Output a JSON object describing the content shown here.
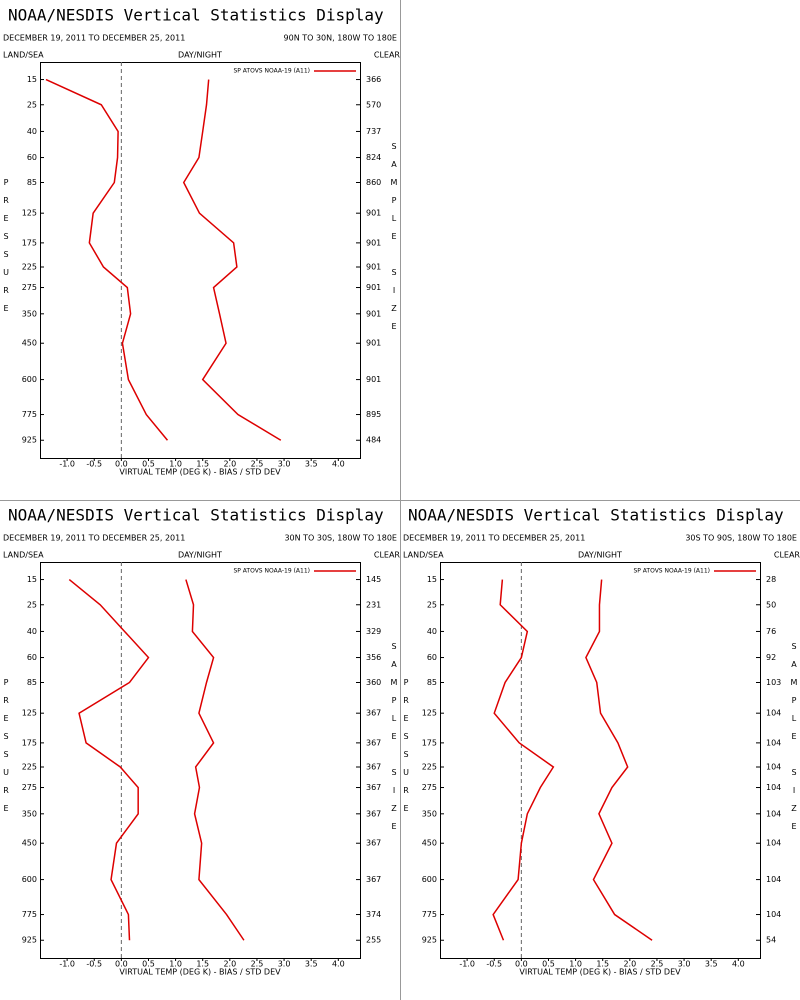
{
  "chart_data": [
    {
      "type": "line",
      "orientation": "horizontal",
      "title": "NOAA/NESDIS Vertical Statistics Display",
      "date_range": "DECEMBER 19, 2011 TO DECEMBER 25, 2011",
      "region": "90N TO 30N, 180W TO 180E",
      "land_sea": "LAND/SEA",
      "day_night": "DAY/NIGHT",
      "clear": "CLEAR",
      "y_label": "PRESSURE",
      "size_label": "SAMPLE SIZE",
      "x_label": "VIRTUAL TEMP (DEG K) - BIAS / STD DEV",
      "y": [
        15,
        25,
        40,
        60,
        85,
        125,
        175,
        225,
        275,
        350,
        450,
        600,
        775,
        925
      ],
      "series": [
        {
          "name": "SP ATOVS NOAA-19 (A11)",
          "color": "#dd0000",
          "values": [
            -1.39,
            -0.37,
            -0.06,
            -0.07,
            -0.13,
            -0.52,
            -0.59,
            -0.33,
            0.11,
            0.17,
            0.02,
            0.13,
            0.46,
            0.85
          ]
        },
        {
          "color": "#dd0000",
          "values": [
            1.61,
            1.57,
            1.5,
            1.43,
            1.15,
            1.44,
            2.07,
            2.13,
            1.7,
            1.81,
            1.93,
            1.5,
            2.15,
            2.94
          ]
        }
      ],
      "sample_size": [
        366,
        570,
        737,
        824,
        860,
        901,
        901,
        901,
        901,
        901,
        901,
        901,
        895,
        484
      ],
      "xlim": [
        -1.5,
        4.4
      ],
      "xticks": [
        {
          "value": -1,
          "label": "-1.0"
        },
        {
          "value": -0.5,
          "label": "-0.5"
        },
        {
          "value": 0,
          "label": "0.0"
        },
        {
          "value": 0.5,
          "label": "0.5"
        },
        {
          "value": 1,
          "label": "1.0"
        },
        {
          "value": 1.5,
          "label": "1.5"
        },
        {
          "value": 2,
          "label": "2.0"
        },
        {
          "value": 2.5,
          "label": "2.5"
        },
        {
          "value": 3,
          "label": "3.0"
        },
        {
          "value": 3.5,
          "label": "3.5"
        },
        {
          "value": 4,
          "label": "4.0"
        }
      ],
      "ylim": [
        10,
        1040
      ],
      "yscale": "power",
      "y_exponent": 0.286,
      "y_inverted": true,
      "yticks": [
        15,
        25,
        40,
        60,
        85,
        125,
        175,
        225,
        275,
        350,
        450,
        600,
        775,
        925
      ]
    },
    {
      "type": "line",
      "orientation": "horizontal",
      "title": "NOAA/NESDIS Vertical Statistics Display",
      "date_range": "DECEMBER 19, 2011 TO DECEMBER 25, 2011",
      "region": "30N TO 30S, 180W TO 180E",
      "land_sea": "LAND/SEA",
      "day_night": "DAY/NIGHT",
      "clear": "CLEAR",
      "y_label": "PRESSURE",
      "size_label": "SAMPLE SIZE",
      "x_label": "VIRTUAL TEMP (DEG K) - BIAS / STD DEV",
      "y": [
        15,
        25,
        40,
        60,
        85,
        125,
        175,
        225,
        275,
        350,
        450,
        600,
        775,
        925
      ],
      "series": [
        {
          "name": "SP ATOVS NOAA-19 (A11)",
          "color": "#dd0000",
          "values": [
            -0.96,
            -0.39,
            0.06,
            0.5,
            0.15,
            -0.78,
            -0.65,
            -0.02,
            0.31,
            0.31,
            -0.09,
            -0.19,
            0.13,
            0.15
          ]
        },
        {
          "color": "#dd0000",
          "values": [
            1.19,
            1.33,
            1.31,
            1.7,
            1.57,
            1.43,
            1.7,
            1.37,
            1.44,
            1.35,
            1.48,
            1.43,
            1.94,
            2.26
          ]
        }
      ],
      "sample_size": [
        145,
        231,
        329,
        356,
        360,
        367,
        367,
        367,
        367,
        367,
        367,
        367,
        374,
        255
      ],
      "xlim": [
        -1.5,
        4.4
      ],
      "xticks": [
        {
          "value": -1,
          "label": "-1.0"
        },
        {
          "value": -0.5,
          "label": "-0.5"
        },
        {
          "value": 0,
          "label": "0.0"
        },
        {
          "value": 0.5,
          "label": "0.5"
        },
        {
          "value": 1,
          "label": "1.0"
        },
        {
          "value": 1.5,
          "label": "1.5"
        },
        {
          "value": 2,
          "label": "2.0"
        },
        {
          "value": 2.5,
          "label": "2.5"
        },
        {
          "value": 3,
          "label": "3.0"
        },
        {
          "value": 3.5,
          "label": "3.5"
        },
        {
          "value": 4,
          "label": "4.0"
        }
      ],
      "ylim": [
        10,
        1040
      ],
      "yscale": "power",
      "y_exponent": 0.286,
      "y_inverted": true,
      "yticks": [
        15,
        25,
        40,
        60,
        85,
        125,
        175,
        225,
        275,
        350,
        450,
        600,
        775,
        925
      ]
    },
    {
      "type": "line",
      "orientation": "horizontal",
      "title": "NOAA/NESDIS Vertical Statistics Display",
      "date_range": "DECEMBER 19, 2011 TO DECEMBER 25, 2011",
      "region": "30S TO 90S, 180W TO 180E",
      "land_sea": "LAND/SEA",
      "day_night": "DAY/NIGHT",
      "clear": "CLEAR",
      "y_label": "PRESSURE",
      "size_label": "SAMPLE SIZE",
      "x_label": "VIRTUAL TEMP (DEG K) - BIAS / STD DEV",
      "y": [
        15,
        25,
        40,
        60,
        85,
        125,
        175,
        225,
        275,
        350,
        450,
        600,
        775,
        925
      ],
      "series": [
        {
          "name": "SP ATOVS NOAA-19 (A11)",
          "color": "#dd0000",
          "values": [
            -0.35,
            -0.39,
            0.11,
            0,
            -0.3,
            -0.5,
            -0.04,
            0.59,
            0.35,
            0.11,
            0,
            -0.06,
            -0.52,
            -0.33
          ]
        },
        {
          "color": "#dd0000",
          "values": [
            1.48,
            1.44,
            1.44,
            1.19,
            1.39,
            1.46,
            1.78,
            1.96,
            1.67,
            1.43,
            1.67,
            1.33,
            1.72,
            2.41
          ]
        }
      ],
      "sample_size": [
        28,
        50,
        76,
        92,
        103,
        104,
        104,
        104,
        104,
        104,
        104,
        104,
        104,
        54
      ],
      "xlim": [
        -1.5,
        4.4
      ],
      "xticks": [
        {
          "value": -1,
          "label": "-1.0"
        },
        {
          "value": -0.5,
          "label": "-0.5"
        },
        {
          "value": 0,
          "label": "0.0"
        },
        {
          "value": 0.5,
          "label": "0.5"
        },
        {
          "value": 1,
          "label": "1.0"
        },
        {
          "value": 1.5,
          "label": "1.5"
        },
        {
          "value": 2,
          "label": "2.0"
        },
        {
          "value": 2.5,
          "label": "2.5"
        },
        {
          "value": 3,
          "label": "3.0"
        },
        {
          "value": 3.5,
          "label": "3.5"
        },
        {
          "value": 4,
          "label": "4.0"
        }
      ],
      "ylim": [
        10,
        1040
      ],
      "yscale": "power",
      "y_exponent": 0.286,
      "y_inverted": true,
      "yticks": [
        15,
        25,
        40,
        60,
        85,
        125,
        175,
        225,
        275,
        350,
        450,
        600,
        775,
        925
      ]
    }
  ]
}
